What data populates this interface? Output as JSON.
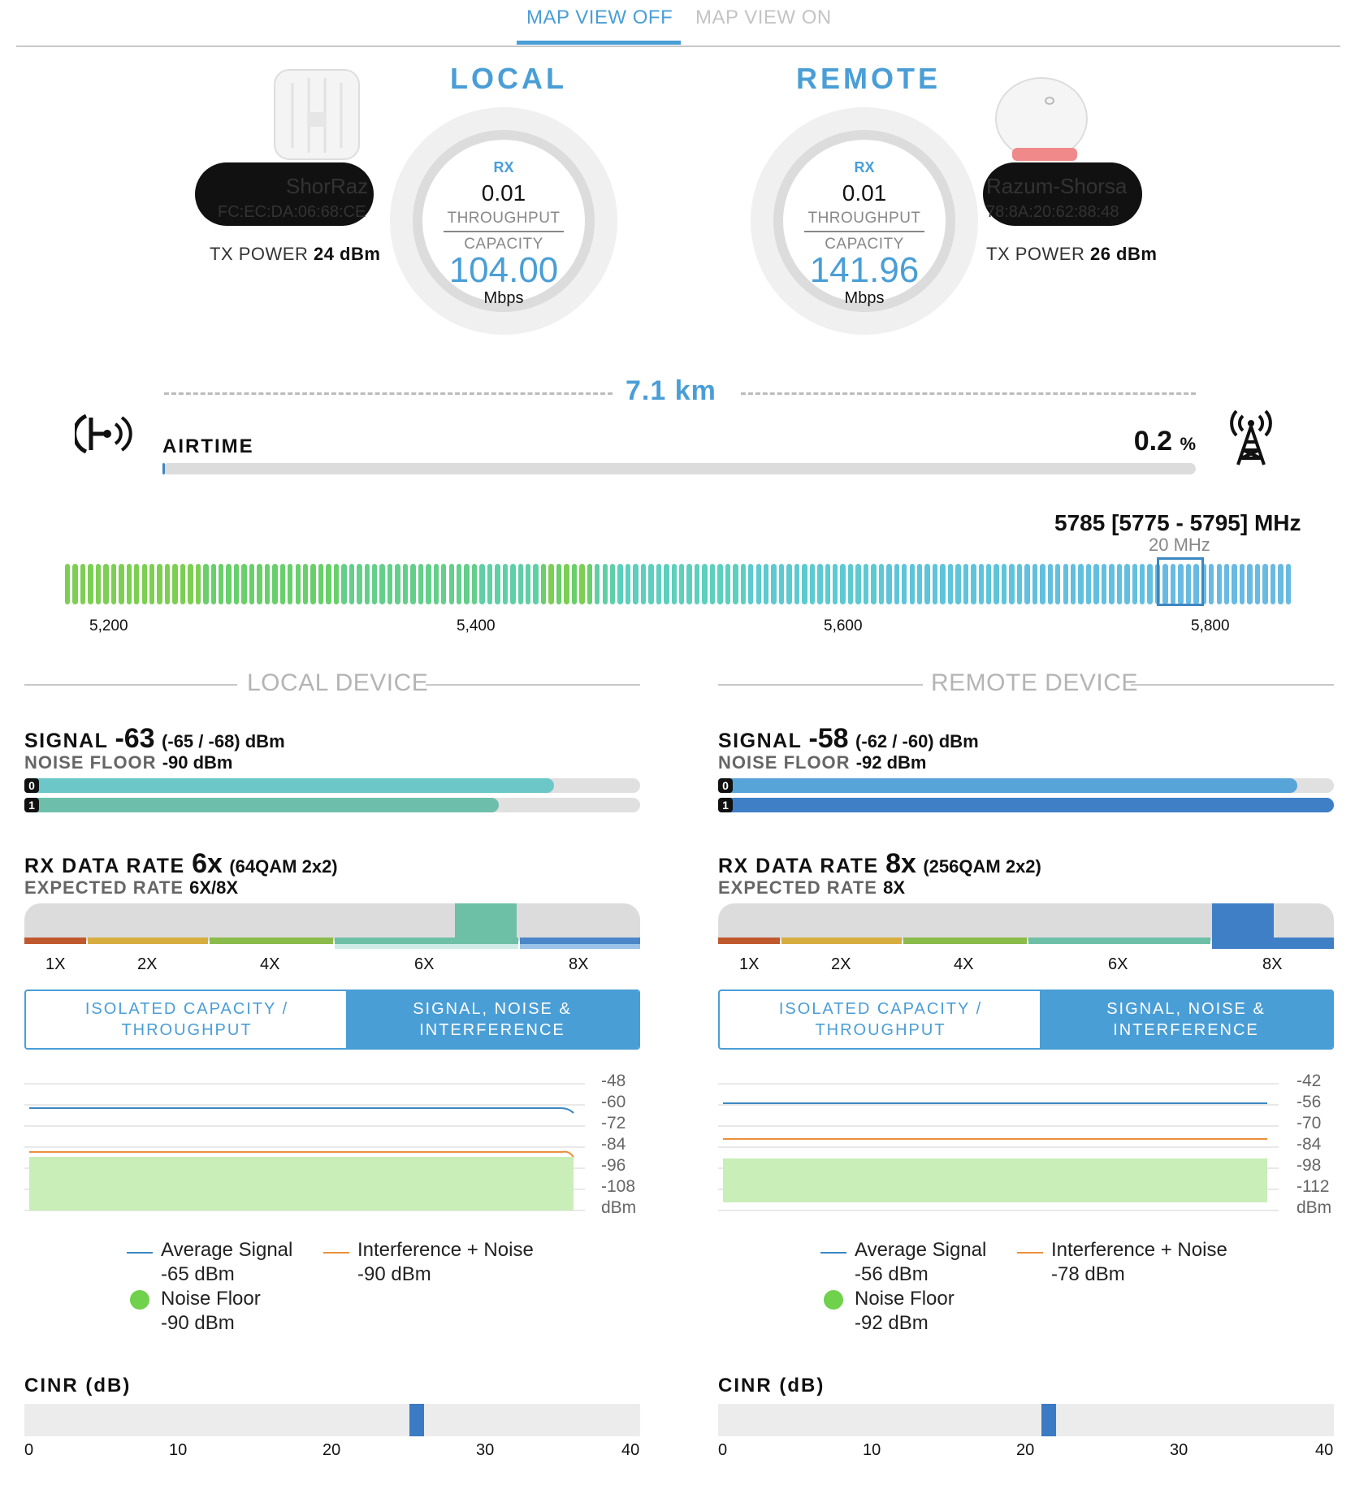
{
  "tabs": [
    {
      "label": "MAP VIEW OFF",
      "active": true
    },
    {
      "label": "MAP VIEW ON",
      "active": false
    }
  ],
  "local": {
    "title": "LOCAL",
    "device_name": "ShorRaz",
    "mac": "FC:EC:DA:06:68:CE",
    "tx_power_label": "TX POWER",
    "tx_power_value": "24 dBm",
    "rx_label": "RX",
    "throughput_value": "0.01",
    "throughput_label": "THROUGHPUT",
    "capacity_label": "CAPACITY",
    "capacity_value": "104.00",
    "unit": "Mbps"
  },
  "remote": {
    "title": "REMOTE",
    "device_name": "Razum-Shorsa",
    "mac": "78:8A:20:62:88:48",
    "tx_power_label": "TX POWER",
    "tx_power_value": "26 dBm",
    "rx_label": "RX",
    "throughput_value": "0.01",
    "throughput_label": "THROUGHPUT",
    "capacity_label": "CAPACITY",
    "capacity_value": "141.96",
    "unit": "Mbps"
  },
  "link": {
    "distance": "7.1 km",
    "airtime_label": "AIRTIME",
    "airtime_value": "0.2",
    "airtime_unit": "%",
    "airtime_fraction": 0.002
  },
  "frequency": {
    "title": "5785 [5775 - 5795] MHz",
    "bandwidth": "20 MHz",
    "ticks": [
      "5,200",
      "5,400",
      "5,600",
      "5,800"
    ]
  },
  "local_device": {
    "section_title": "LOCAL DEVICE",
    "signal_label": "SIGNAL",
    "signal_value": "-63",
    "signal_detail": "(-65 / -68) dBm",
    "noise_label": "NOISE FLOOR",
    "noise_value": "-90 dBm",
    "chains": [
      {
        "id": "0",
        "fraction": 0.86,
        "color": "#6cc7c9"
      },
      {
        "id": "1",
        "fraction": 0.77,
        "color": "#6dbfab"
      }
    ],
    "rx_rate_label": "RX DATA RATE",
    "rx_rate_value": "6x",
    "rx_rate_detail": "(64QAM 2x2)",
    "expected_label": "EXPECTED RATE",
    "expected_value": "6X/8X",
    "rate_labels": [
      "1X",
      "2X",
      "4X",
      "6X",
      "8X"
    ],
    "current_rate": "6X",
    "toggle_left": "ISOLATED CAPACITY / THROUGHPUT",
    "toggle_right": "SIGNAL, NOISE & INTERFERENCE",
    "chart_axis": [
      "-48",
      "-60",
      "-72",
      "-84",
      "-96",
      "-108",
      "dBm"
    ],
    "legend": {
      "avg_signal_label": "Average Signal",
      "avg_signal_value": "-65 dBm",
      "interference_label": "Interference + Noise",
      "interference_value": "-90 dBm",
      "noise_label": "Noise Floor",
      "noise_value": "-90 dBm"
    },
    "cinr_label": "CINR (dB)",
    "cinr_value": 25.5,
    "cinr_ticks": [
      "0",
      "10",
      "20",
      "30",
      "40"
    ]
  },
  "remote_device": {
    "section_title": "REMOTE DEVICE",
    "signal_label": "SIGNAL",
    "signal_value": "-58",
    "signal_detail": "(-62 / -60) dBm",
    "noise_label": "NOISE FLOOR",
    "noise_value": "-92 dBm",
    "chains": [
      {
        "id": "0",
        "fraction": 0.94,
        "color": "#56a4d8"
      },
      {
        "id": "1",
        "fraction": 1.0,
        "color": "#3f7fc6"
      }
    ],
    "rx_rate_label": "RX DATA RATE",
    "rx_rate_value": "8x",
    "rx_rate_detail": "(256QAM 2x2)",
    "expected_label": "EXPECTED RATE",
    "expected_value": "8X",
    "rate_labels": [
      "1X",
      "2X",
      "4X",
      "6X",
      "8X"
    ],
    "current_rate": "8X",
    "toggle_left": "ISOLATED CAPACITY / THROUGHPUT",
    "toggle_right": "SIGNAL, NOISE & INTERFERENCE",
    "chart_axis": [
      "-42",
      "-56",
      "-70",
      "-84",
      "-98",
      "-112",
      "dBm"
    ],
    "legend": {
      "avg_signal_label": "Average Signal",
      "avg_signal_value": "-56 dBm",
      "interference_label": "Interference + Noise",
      "interference_value": "-78 dBm",
      "noise_label": "Noise Floor",
      "noise_value": "-92 dBm"
    },
    "cinr_label": "CINR (dB)",
    "cinr_value": 21.5,
    "cinr_ticks": [
      "0",
      "10",
      "20",
      "30",
      "40"
    ]
  },
  "colors": {
    "accent": "#4a9ed6",
    "noise_floor_fill": "#c9eeb8",
    "avg_signal_line": "#3b87c1",
    "interference_line": "#ec8f3c"
  }
}
